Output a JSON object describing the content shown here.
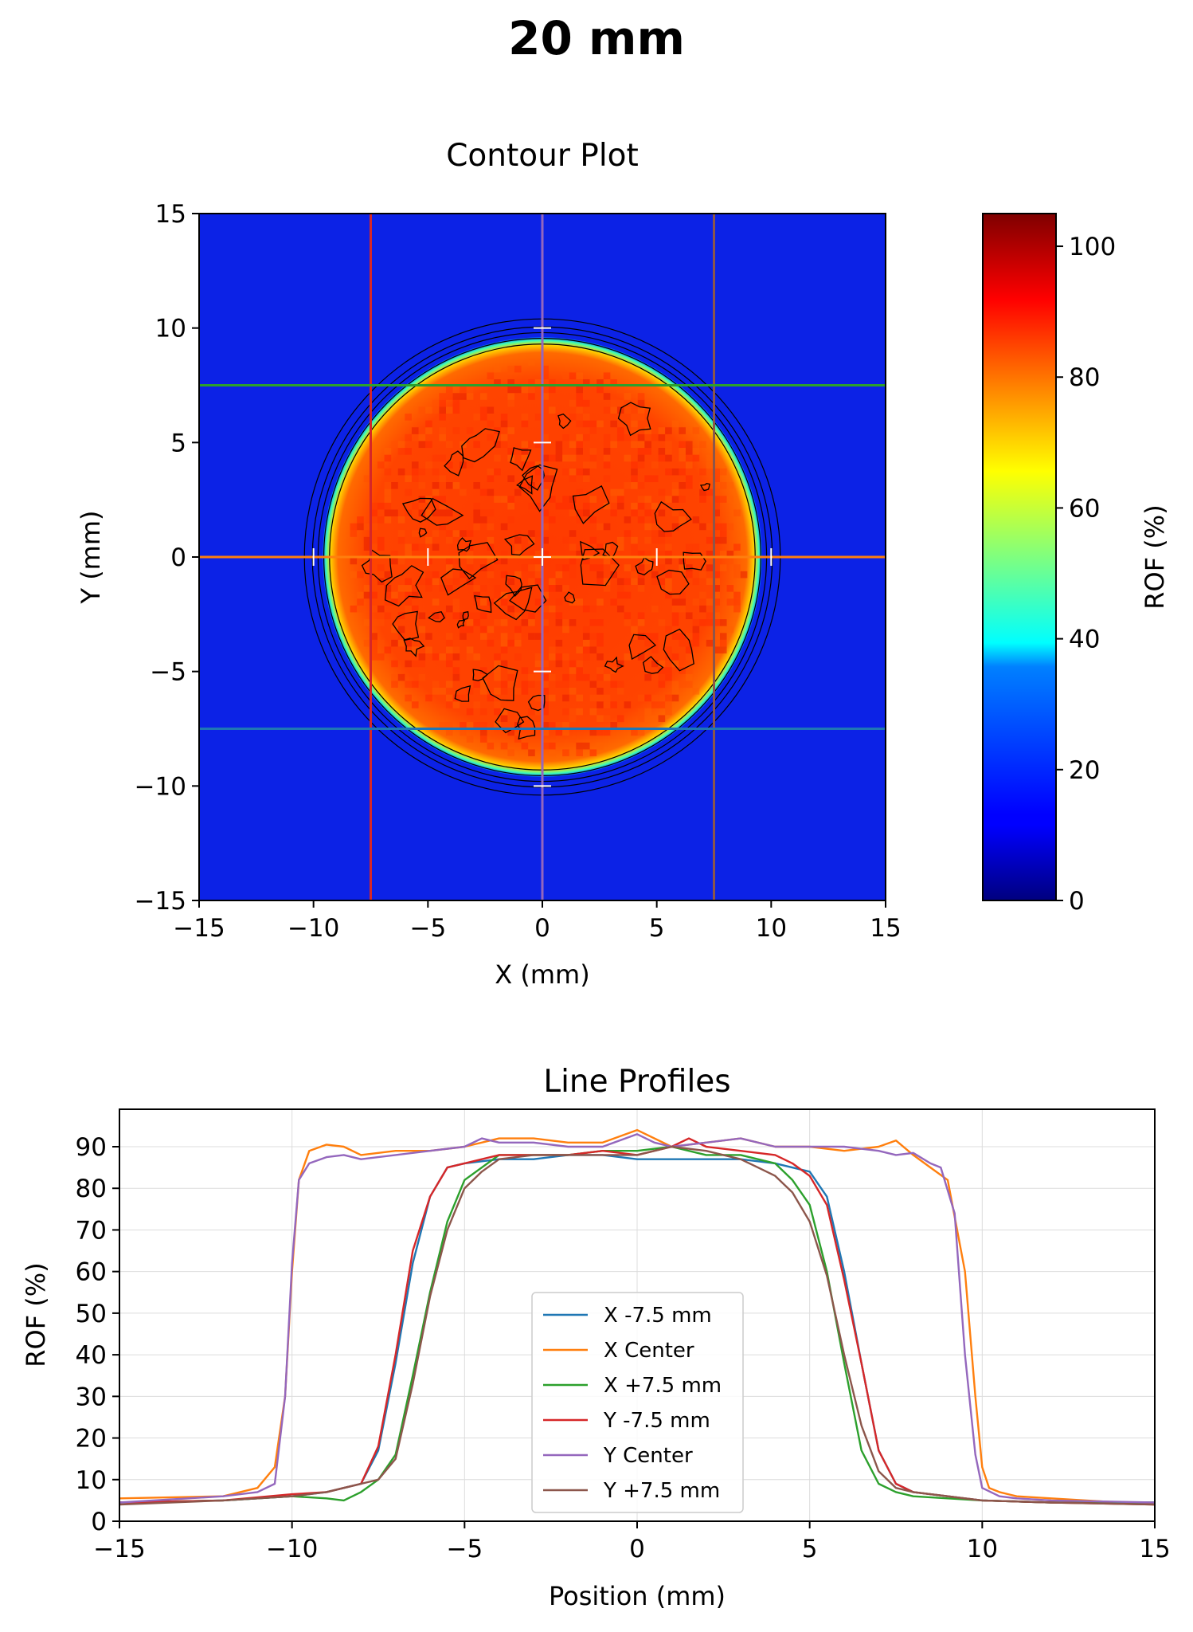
{
  "suptitle": "20 mm",
  "contour": {
    "title": "Contour Plot",
    "xlabel": "X (mm)",
    "ylabel": "Y (mm)",
    "xlim": [
      -15,
      15
    ],
    "ylim": [
      15,
      -15
    ],
    "xticks": [
      -15,
      -10,
      -5,
      0,
      5,
      10,
      15
    ],
    "yticks": [
      -15,
      -10,
      -5,
      0,
      5,
      10,
      15
    ],
    "xtick_labels": [
      "−15",
      "−10",
      "−5",
      "0",
      "5",
      "10",
      "15"
    ],
    "ytick_labels": [
      "−15",
      "−10",
      "−5",
      "0",
      "5",
      "10",
      "15"
    ],
    "field": {
      "shape": "circle",
      "center": [
        0,
        0
      ],
      "radius_mm": 9.6,
      "plateau_rof": 88,
      "background_rof": 6
    },
    "guide_lines": [
      {
        "orientation": "vertical",
        "position": -7.5,
        "color": "#d62728"
      },
      {
        "orientation": "vertical",
        "position": 0,
        "color": "#9467bd"
      },
      {
        "orientation": "vertical",
        "position": 7.5,
        "color": "#8c564b"
      },
      {
        "orientation": "horizontal",
        "position": -7.5,
        "color": "#1f77b4"
      },
      {
        "orientation": "horizontal",
        "position": 0,
        "color": "#ff7f0e"
      },
      {
        "orientation": "horizontal",
        "position": 7.5,
        "color": "#2ca02c"
      }
    ],
    "colorbar": {
      "label": "ROF (%)",
      "range": [
        0,
        105
      ],
      "ticks": [
        0,
        20,
        40,
        60,
        80,
        100
      ],
      "tick_labels": [
        "0",
        "20",
        "40",
        "60",
        "80",
        "100"
      ],
      "colormap": "jet"
    }
  },
  "chart_data": {
    "type": "line",
    "title": "Line Profiles",
    "xlabel": "Position (mm)",
    "ylabel": "ROF (%)",
    "xlim": [
      -15,
      15
    ],
    "ylim": [
      0,
      99
    ],
    "xticks": [
      -15,
      -10,
      -5,
      0,
      5,
      10,
      15
    ],
    "xtick_labels": [
      "−15",
      "−10",
      "−5",
      "0",
      "5",
      "10",
      "15"
    ],
    "yticks": [
      0,
      10,
      20,
      30,
      40,
      50,
      60,
      70,
      80,
      90
    ],
    "grid": true,
    "legend_position": "lower center",
    "series": [
      {
        "name": "X -7.5 mm",
        "color": "#1f77b4",
        "x": [
          -15,
          -12,
          -10,
          -9,
          -8.5,
          -8,
          -7.5,
          -7,
          -6.5,
          -6,
          -5.5,
          -5,
          -4,
          -3,
          -2,
          -1,
          0,
          1,
          2,
          3,
          4,
          5,
          5.5,
          6,
          6.5,
          7,
          7.5,
          8,
          9,
          10,
          12,
          15
        ],
        "y": [
          4.5,
          5,
          6,
          7,
          8,
          9,
          17,
          38,
          62,
          78,
          85,
          86,
          87,
          87,
          88,
          88,
          87,
          87,
          87,
          87,
          86,
          84,
          78,
          60,
          38,
          17,
          9,
          7,
          6,
          5,
          4.5,
          4.5
        ]
      },
      {
        "name": "X Center",
        "color": "#ff7f0e",
        "x": [
          -15,
          -12,
          -11,
          -10.5,
          -10.2,
          -10,
          -9.8,
          -9.5,
          -9,
          -8.5,
          -8,
          -7,
          -6,
          -5,
          -4,
          -3,
          -2,
          -1,
          0,
          1,
          2,
          3,
          4,
          5,
          6,
          7,
          7.5,
          8,
          8.5,
          9,
          9.5,
          9.8,
          10,
          10.2,
          10.5,
          11,
          12,
          15
        ],
        "y": [
          5.5,
          6,
          8,
          13,
          30,
          60,
          82,
          89,
          90.5,
          90,
          88,
          89,
          89,
          90,
          92,
          92,
          91,
          91,
          94,
          90,
          91,
          92,
          90,
          90,
          89,
          90,
          91.5,
          88,
          85,
          82,
          60,
          30,
          13,
          8,
          7,
          6,
          5.5,
          4
        ]
      },
      {
        "name": "X +7.5 mm",
        "color": "#2ca02c",
        "x": [
          -15,
          -12,
          -10,
          -9,
          -8.5,
          -8,
          -7.5,
          -7,
          -6.5,
          -6,
          -5.5,
          -5,
          -4,
          -3,
          -2,
          -1,
          0,
          1,
          2,
          3,
          4,
          4.5,
          5,
          5.5,
          6,
          6.5,
          7,
          7.5,
          8,
          9,
          10,
          12,
          15
        ],
        "y": [
          4.5,
          5,
          6,
          5.5,
          5,
          7,
          10,
          16,
          35,
          55,
          72,
          82,
          88,
          88,
          88,
          89,
          89,
          90,
          88,
          88,
          86,
          82,
          76,
          60,
          38,
          17,
          9,
          7,
          6,
          5.5,
          5,
          4.5,
          4.5
        ]
      },
      {
        "name": "Y -7.5 mm",
        "color": "#d62728",
        "x": [
          -15,
          -12,
          -10,
          -9,
          -8.5,
          -8,
          -7.5,
          -7,
          -6.5,
          -6,
          -5.5,
          -5,
          -4,
          -3,
          -2,
          -1,
          0,
          1,
          1.5,
          2,
          3,
          4,
          4.5,
          5,
          5.5,
          6,
          6.5,
          7,
          7.5,
          8,
          9,
          10,
          12,
          15
        ],
        "y": [
          4.5,
          5,
          6.5,
          7,
          8,
          9,
          18,
          40,
          65,
          78,
          85,
          86,
          88,
          88,
          88,
          89,
          88,
          90,
          92,
          90,
          89,
          88,
          86,
          83,
          76,
          58,
          38,
          17,
          9,
          7,
          6,
          5,
          4.5,
          4
        ]
      },
      {
        "name": "Y Center",
        "color": "#9467bd",
        "x": [
          -15,
          -12,
          -11,
          -10.5,
          -10.2,
          -10,
          -9.8,
          -9.5,
          -9,
          -8.5,
          -8,
          -7,
          -6,
          -5,
          -4.5,
          -4,
          -3,
          -2,
          -1,
          0,
          0.5,
          1,
          2,
          3,
          4,
          5,
          6,
          7,
          7.5,
          8,
          8.5,
          8.8,
          9.2,
          9.5,
          9.8,
          10,
          10.5,
          11,
          12,
          15
        ],
        "y": [
          4.5,
          6,
          7,
          9,
          30,
          62,
          82,
          86,
          87.5,
          88,
          87,
          88,
          89,
          90,
          92,
          91,
          91,
          90,
          90,
          93,
          91,
          90,
          91,
          92,
          90,
          90,
          90,
          89,
          88,
          88.5,
          86,
          85,
          74,
          40,
          16,
          8,
          6,
          5.5,
          5,
          4.5
        ]
      },
      {
        "name": "Y +7.5 mm",
        "color": "#8c564b",
        "x": [
          -15,
          -12,
          -10,
          -9,
          -8.5,
          -8,
          -7.5,
          -7,
          -6.5,
          -6,
          -5.5,
          -5,
          -4.5,
          -4,
          -3,
          -2,
          -1,
          0,
          0.5,
          1,
          2,
          3,
          3.5,
          4,
          4.5,
          5,
          5.5,
          6,
          6.5,
          7,
          7.5,
          8,
          9,
          10,
          12,
          15
        ],
        "y": [
          4,
          5,
          6,
          7,
          8,
          9,
          10,
          15,
          33,
          54,
          70,
          80,
          84,
          87,
          88,
          88,
          88,
          88,
          89,
          90,
          89,
          87,
          85,
          83,
          79,
          72,
          59,
          40,
          23,
          12,
          8,
          7,
          6,
          5,
          4.5,
          4
        ]
      }
    ]
  }
}
